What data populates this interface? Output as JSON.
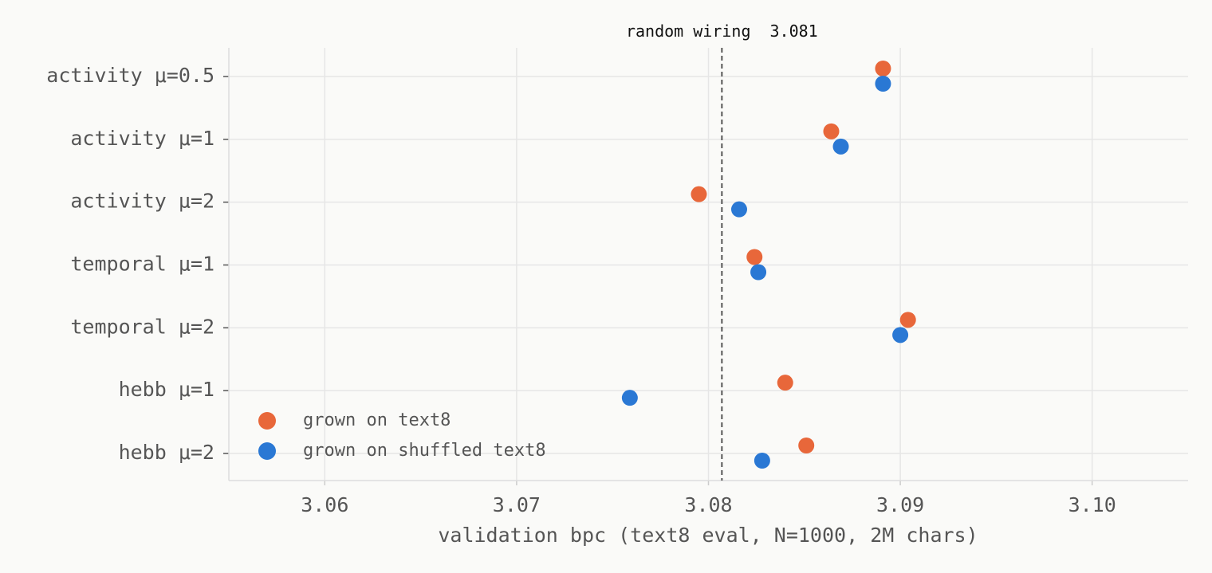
{
  "chart_data": {
    "type": "dot",
    "categories": [
      "activity μ=0.5",
      "activity μ=1",
      "activity μ=2",
      "temporal μ=1",
      "temporal μ=2",
      "hebb μ=1",
      "hebb μ=2"
    ],
    "series": [
      {
        "name": "grown on text8",
        "color": "#e8673a",
        "values": [
          3.0891,
          3.0864,
          3.0795,
          3.0824,
          3.0904,
          3.084,
          3.0851
        ]
      },
      {
        "name": "grown on shuffled text8",
        "color": "#2a78d4",
        "values": [
          3.0891,
          3.0869,
          3.0816,
          3.0826,
          3.09,
          3.0759,
          3.0828
        ]
      }
    ],
    "xlabel": "validation bpc (text8 eval, N=1000, 2M chars)",
    "xlim": [
      3.055,
      3.105
    ],
    "xticks": [
      3.06,
      3.07,
      3.08,
      3.09,
      {
        "value": 3.1,
        "label": "3.10"
      }
    ],
    "reference": {
      "label": "random wiring",
      "value": 3.0807,
      "value_label": "3.081"
    },
    "grid": true,
    "legend": "lower left"
  }
}
